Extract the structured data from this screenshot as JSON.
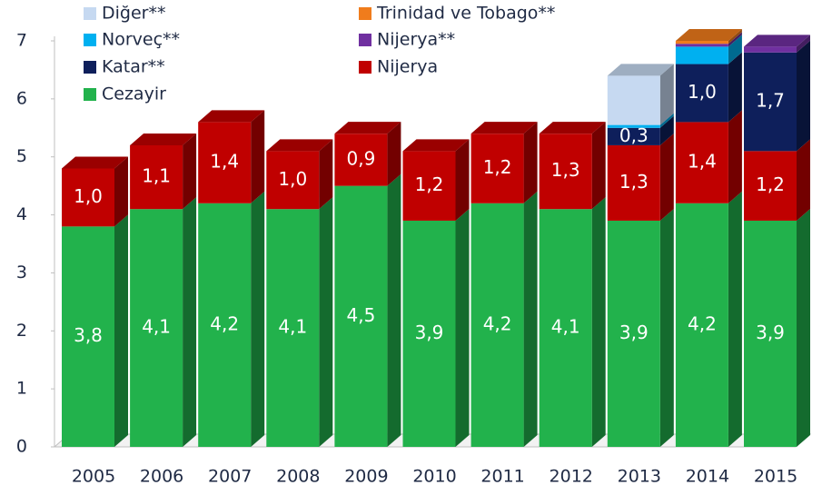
{
  "chart_data": {
    "type": "bar",
    "stacked": true,
    "categories": [
      "2005",
      "2006",
      "2007",
      "2008",
      "2009",
      "2010",
      "2011",
      "2012",
      "2013",
      "2014",
      "2015"
    ],
    "ylim": [
      0,
      7
    ],
    "yticks": [
      0,
      1,
      2,
      3,
      4,
      5,
      6,
      7
    ],
    "series": [
      {
        "name": "Cezayir",
        "color": "#22b24c",
        "values": [
          3.8,
          4.1,
          4.2,
          4.1,
          4.5,
          3.9,
          4.2,
          4.1,
          3.9,
          4.2,
          3.9
        ],
        "value_labels": [
          "3,8",
          "4,1",
          "4,2",
          "4,1",
          "4,5",
          "3,9",
          "4,2",
          "4,1",
          "3,9",
          "4,2",
          "3,9"
        ]
      },
      {
        "name": "Nijerya",
        "color": "#c00000",
        "values": [
          1.0,
          1.1,
          1.4,
          1.0,
          0.9,
          1.2,
          1.2,
          1.3,
          1.3,
          1.4,
          1.2
        ],
        "value_labels": [
          "1,0",
          "1,1",
          "1,4",
          "1,0",
          "0,9",
          "1,2",
          "1,2",
          "1,3",
          "1,3",
          "1,4",
          "1,2"
        ]
      },
      {
        "name": "Katar**",
        "color": "#0e1f5b",
        "values": [
          null,
          null,
          null,
          null,
          null,
          null,
          null,
          null,
          0.3,
          1.0,
          1.7
        ],
        "value_labels": [
          null,
          null,
          null,
          null,
          null,
          null,
          null,
          null,
          "0,3",
          "1,0",
          "1,7"
        ]
      },
      {
        "name": "Norveç**",
        "color": "#00b0f0",
        "values": [
          null,
          null,
          null,
          null,
          null,
          null,
          null,
          null,
          0.05,
          0.3,
          null
        ]
      },
      {
        "name": "Nijerya**",
        "color": "#7030a0",
        "values": [
          null,
          null,
          null,
          null,
          null,
          null,
          null,
          null,
          null,
          0.05,
          0.1
        ]
      },
      {
        "name": "Trinidad ve Tobago**",
        "color": "#f07c1c",
        "values": [
          null,
          null,
          null,
          null,
          null,
          null,
          null,
          null,
          null,
          0.05,
          null
        ]
      },
      {
        "name": "Diğer**",
        "color": "#c6d9f1",
        "values": [
          null,
          null,
          null,
          null,
          null,
          null,
          null,
          null,
          0.85,
          null,
          null
        ]
      }
    ]
  }
}
